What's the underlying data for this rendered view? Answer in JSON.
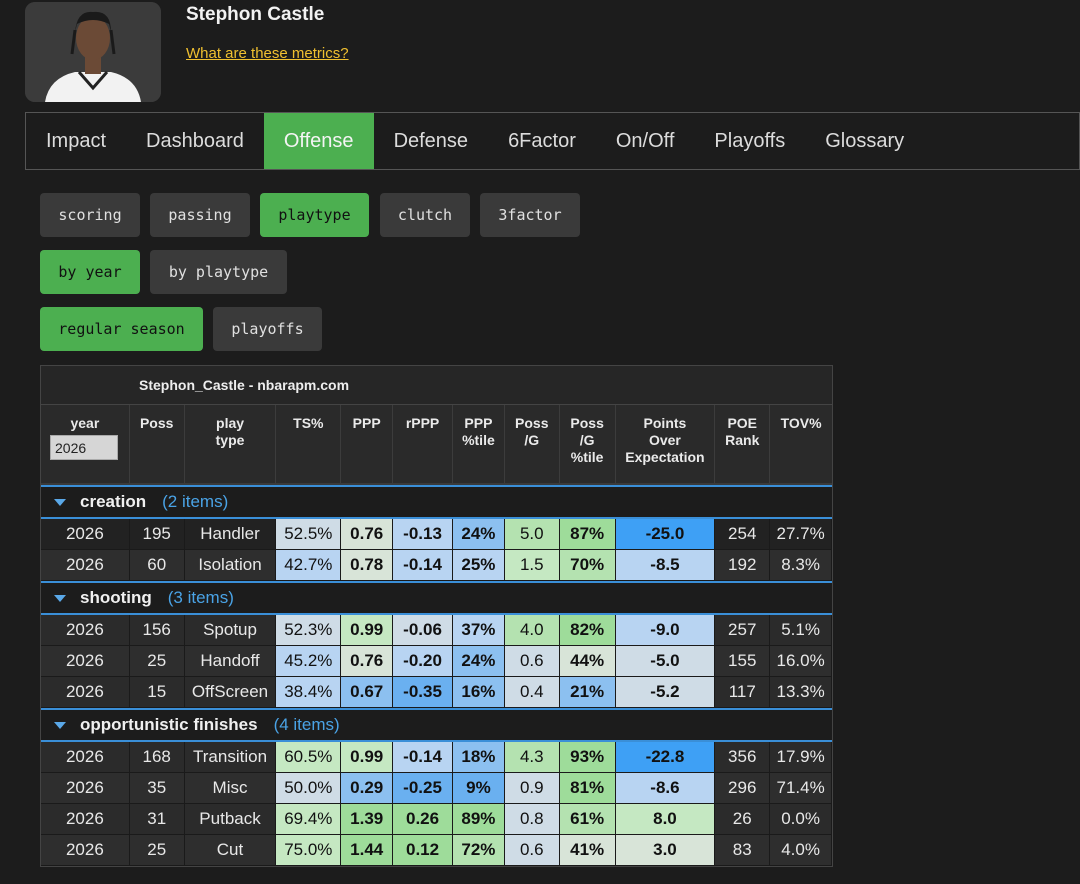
{
  "player": {
    "name": "Stephon Castle",
    "metrics_link": "What are these metrics?"
  },
  "tabs": [
    "Impact",
    "Dashboard",
    "Offense",
    "Defense",
    "6Factor",
    "On/Off",
    "Playoffs",
    "Glossary"
  ],
  "active_tab": "Offense",
  "sub_buttons": [
    "scoring",
    "passing",
    "playtype",
    "clutch",
    "3factor"
  ],
  "view_buttons": [
    "by year",
    "by playtype"
  ],
  "season_buttons": [
    "regular season",
    "playoffs"
  ],
  "table": {
    "caption": "Stephon_Castle - nbarapm.com",
    "headers": {
      "year": "year",
      "poss": "Poss",
      "play_type": [
        "play",
        "type"
      ],
      "ts": "TS%",
      "ppp": "PPP",
      "rppp": "rPPP",
      "ppp_tile": [
        "PPP",
        "%tile"
      ],
      "poss_g": [
        "Poss",
        "/G"
      ],
      "poss_g_tile": [
        "Poss",
        "/G",
        "%tile"
      ],
      "poe": [
        "Points",
        "Over",
        "Expectation"
      ],
      "poe_rank": [
        "POE",
        "Rank"
      ],
      "tov": "TOV%"
    },
    "year_filter": "2026",
    "colors": {
      "green_light": "#c5e8c2",
      "green": "#9edc9a",
      "green_mid": "#b4e2b0",
      "blue_light": "#b8d4f2",
      "blue": "#8cc0f0",
      "blue_mid": "#6ab0f0",
      "blue_strong": "#3ea0f5",
      "grey_blue": "#cfdce6",
      "neutral": "#d8e4d8"
    },
    "groups": [
      {
        "name": "creation",
        "count": "(2 items)",
        "rows": [
          {
            "year": "2026",
            "poss": "195",
            "type": "Handler",
            "ts": "52.5%",
            "ppp": "0.76",
            "rppp": "-0.13",
            "ppp_tile": "24%",
            "poss_g": "5.0",
            "poss_g_tile": "87%",
            "poe": "-25.0",
            "rank": "254",
            "tov": "27.7%"
          },
          {
            "year": "2026",
            "poss": "60",
            "type": "Isolation",
            "ts": "42.7%",
            "ppp": "0.78",
            "rppp": "-0.14",
            "ppp_tile": "25%",
            "poss_g": "1.5",
            "poss_g_tile": "70%",
            "poe": "-8.5",
            "rank": "192",
            "tov": "8.3%"
          }
        ]
      },
      {
        "name": "shooting",
        "count": "(3 items)",
        "rows": [
          {
            "year": "2026",
            "poss": "156",
            "type": "Spotup",
            "ts": "52.3%",
            "ppp": "0.99",
            "rppp": "-0.06",
            "ppp_tile": "37%",
            "poss_g": "4.0",
            "poss_g_tile": "82%",
            "poe": "-9.0",
            "rank": "257",
            "tov": "5.1%"
          },
          {
            "year": "2026",
            "poss": "25",
            "type": "Handoff",
            "ts": "45.2%",
            "ppp": "0.76",
            "rppp": "-0.20",
            "ppp_tile": "24%",
            "poss_g": "0.6",
            "poss_g_tile": "44%",
            "poe": "-5.0",
            "rank": "155",
            "tov": "16.0%"
          },
          {
            "year": "2026",
            "poss": "15",
            "type": "OffScreen",
            "ts": "38.4%",
            "ppp": "0.67",
            "rppp": "-0.35",
            "ppp_tile": "16%",
            "poss_g": "0.4",
            "poss_g_tile": "21%",
            "poe": "-5.2",
            "rank": "117",
            "tov": "13.3%"
          }
        ]
      },
      {
        "name": "opportunistic finishes",
        "count": "(4 items)",
        "rows": [
          {
            "year": "2026",
            "poss": "168",
            "type": "Transition",
            "ts": "60.5%",
            "ppp": "0.99",
            "rppp": "-0.14",
            "ppp_tile": "18%",
            "poss_g": "4.3",
            "poss_g_tile": "93%",
            "poe": "-22.8",
            "rank": "356",
            "tov": "17.9%"
          },
          {
            "year": "2026",
            "poss": "35",
            "type": "Misc",
            "ts": "50.0%",
            "ppp": "0.29",
            "rppp": "-0.25",
            "ppp_tile": "9%",
            "poss_g": "0.9",
            "poss_g_tile": "81%",
            "poe": "-8.6",
            "rank": "296",
            "tov": "71.4%"
          },
          {
            "year": "2026",
            "poss": "31",
            "type": "Putback",
            "ts": "69.4%",
            "ppp": "1.39",
            "rppp": "0.26",
            "ppp_tile": "89%",
            "poss_g": "0.8",
            "poss_g_tile": "61%",
            "poe": "8.0",
            "rank": "26",
            "tov": "0.0%"
          },
          {
            "year": "2026",
            "poss": "25",
            "type": "Cut",
            "ts": "75.0%",
            "ppp": "1.44",
            "rppp": "0.12",
            "ppp_tile": "72%",
            "poss_g": "0.6",
            "poss_g_tile": "41%",
            "poe": "3.0",
            "rank": "83",
            "tov": "4.0%"
          }
        ]
      }
    ]
  }
}
